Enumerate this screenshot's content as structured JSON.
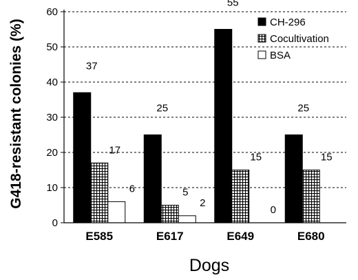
{
  "chart_data": {
    "type": "bar",
    "categories": [
      "E585",
      "E617",
      "E649",
      "E680"
    ],
    "series": [
      {
        "name": "CH-296",
        "values": [
          37,
          25,
          55,
          25
        ],
        "labels": [
          "37",
          "25",
          "55",
          "25"
        ],
        "fill": "solid",
        "color": "#000000"
      },
      {
        "name": "Cocultivation",
        "values": [
          17,
          5,
          15,
          15
        ],
        "labels": [
          "17",
          "5",
          "15",
          "15"
        ],
        "fill": "grid",
        "color": "#000000"
      },
      {
        "name": "BSA",
        "values": [
          6,
          2,
          0,
          null
        ],
        "labels": [
          "6",
          "2",
          "0",
          ""
        ],
        "fill": "white",
        "color": "#ffffff"
      }
    ],
    "title": "",
    "xlabel": "Dogs",
    "ylabel": "G418-resistant colonies (%)",
    "ylim": [
      0,
      60
    ],
    "yticks": [
      "0",
      "10",
      "20",
      "30",
      "40",
      "50",
      "60"
    ],
    "grid": "horizontal-dashed",
    "legend_position": "top-right"
  }
}
